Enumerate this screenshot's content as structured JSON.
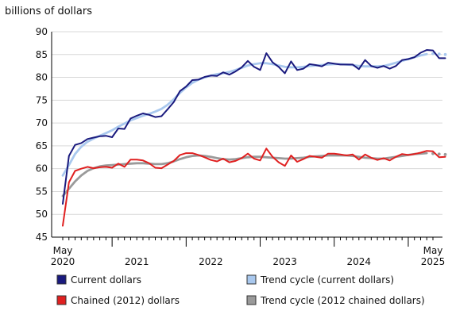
{
  "chart_data": {
    "type": "line",
    "title": "",
    "ylabel": "billions of dollars",
    "xlabel": "",
    "ylim": [
      45,
      90
    ],
    "yticks": [
      45,
      50,
      55,
      60,
      65,
      70,
      75,
      80,
      85,
      90
    ],
    "x_start": "2020-05",
    "x_end": "2025-05",
    "x_tick_labels": [
      {
        "month": "2020-05",
        "line1": "May",
        "line2": "2020"
      },
      {
        "month": "2021-05",
        "line1": "",
        "line2": "2021"
      },
      {
        "month": "2022-05",
        "line1": "",
        "line2": "2022"
      },
      {
        "month": "2023-05",
        "line1": "",
        "line2": "2023"
      },
      {
        "month": "2024-05",
        "line1": "",
        "line2": "2024"
      },
      {
        "month": "2025-05",
        "line1": "May",
        "line2": "2025"
      }
    ],
    "grid": "horizontal",
    "legend_position": "bottom",
    "series": [
      {
        "name": "Current dollars",
        "color": "#1a1a7e",
        "style": "solid",
        "values": [
          52.3,
          62.8,
          65.2,
          65.6,
          66.5,
          66.8,
          67.1,
          67.2,
          66.9,
          68.8,
          68.7,
          71.0,
          71.6,
          72.1,
          71.8,
          71.3,
          71.5,
          73.0,
          74.6,
          77.0,
          78.0,
          79.4,
          79.5,
          80.1,
          80.4,
          80.3,
          81.1,
          80.6,
          81.3,
          82.2,
          83.6,
          82.3,
          81.6,
          85.3,
          83.3,
          82.3,
          80.9,
          83.5,
          81.6,
          81.9,
          82.9,
          82.7,
          82.4,
          83.2,
          83.0,
          82.8,
          82.8,
          82.8,
          81.8,
          83.8,
          82.5,
          82.1,
          82.5,
          81.9,
          82.5,
          83.8,
          84.0,
          84.4,
          85.4,
          86.0,
          85.9,
          84.2,
          84.2
        ]
      },
      {
        "name": "Chained (2012) dollars",
        "color": "#e02020",
        "style": "solid",
        "values": [
          47.5,
          57.0,
          59.5,
          60.0,
          60.4,
          60.1,
          60.3,
          60.4,
          60.2,
          61.1,
          60.4,
          62.0,
          62.0,
          61.8,
          61.2,
          60.2,
          60.1,
          60.9,
          61.7,
          63.0,
          63.4,
          63.4,
          63.0,
          62.5,
          61.9,
          61.6,
          62.2,
          61.4,
          61.7,
          62.3,
          63.3,
          62.2,
          61.8,
          64.4,
          62.6,
          61.4,
          60.6,
          62.9,
          61.5,
          62.1,
          62.8,
          62.6,
          62.4,
          63.3,
          63.3,
          63.1,
          62.9,
          63.1,
          62.0,
          63.1,
          62.4,
          61.9,
          62.3,
          61.8,
          62.6,
          63.2,
          63.0,
          63.2,
          63.5,
          63.9,
          63.8,
          62.5,
          62.6
        ]
      },
      {
        "name": "Trend cycle (current dollars)",
        "color": "#a9c8ee",
        "style": "solid-dotted-end",
        "values": [
          58.5,
          60.8,
          63.2,
          64.8,
          65.9,
          66.6,
          67.2,
          67.8,
          68.4,
          69.2,
          69.9,
          70.6,
          71.1,
          71.6,
          72.0,
          72.5,
          73.1,
          74.0,
          75.2,
          76.6,
          77.8,
          78.8,
          79.5,
          80.0,
          80.4,
          80.7,
          80.9,
          81.2,
          81.6,
          82.1,
          82.6,
          82.9,
          83.1,
          83.1,
          82.9,
          82.6,
          82.3,
          82.2,
          82.2,
          82.3,
          82.5,
          82.6,
          82.7,
          82.8,
          82.9,
          82.9,
          82.8,
          82.7,
          82.5,
          82.4,
          82.4,
          82.4,
          82.5,
          82.8,
          83.2,
          83.6,
          84.0,
          84.4,
          84.8,
          85.1,
          85.2,
          85.1,
          85.0
        ],
        "dotted_from_index": 59
      },
      {
        "name": "Trend cycle (2012 chained dollars)",
        "color": "#9a9a9a",
        "style": "solid-dotted-end",
        "values": [
          54.0,
          55.6,
          57.2,
          58.5,
          59.5,
          60.1,
          60.5,
          60.7,
          60.8,
          60.9,
          61.0,
          61.1,
          61.2,
          61.2,
          61.1,
          61.0,
          61.0,
          61.2,
          61.6,
          62.1,
          62.5,
          62.8,
          62.9,
          62.8,
          62.6,
          62.3,
          62.1,
          62.0,
          62.1,
          62.3,
          62.5,
          62.6,
          62.6,
          62.5,
          62.4,
          62.3,
          62.2,
          62.2,
          62.3,
          62.4,
          62.6,
          62.7,
          62.8,
          62.9,
          62.9,
          62.9,
          62.9,
          62.8,
          62.6,
          62.4,
          62.3,
          62.2,
          62.2,
          62.4,
          62.6,
          62.8,
          63.0,
          63.2,
          63.3,
          63.4,
          63.3,
          63.2,
          63.1
        ],
        "dotted_from_index": 59
      }
    ],
    "legend": [
      {
        "label": "Current dollars",
        "color": "#1a1a7e"
      },
      {
        "label": "Trend cycle (current dollars)",
        "color": "#a9c8ee"
      },
      {
        "label": "Chained (2012) dollars",
        "color": "#e02020"
      },
      {
        "label": "Trend cycle (2012 chained dollars)",
        "color": "#9a9a9a"
      }
    ]
  }
}
